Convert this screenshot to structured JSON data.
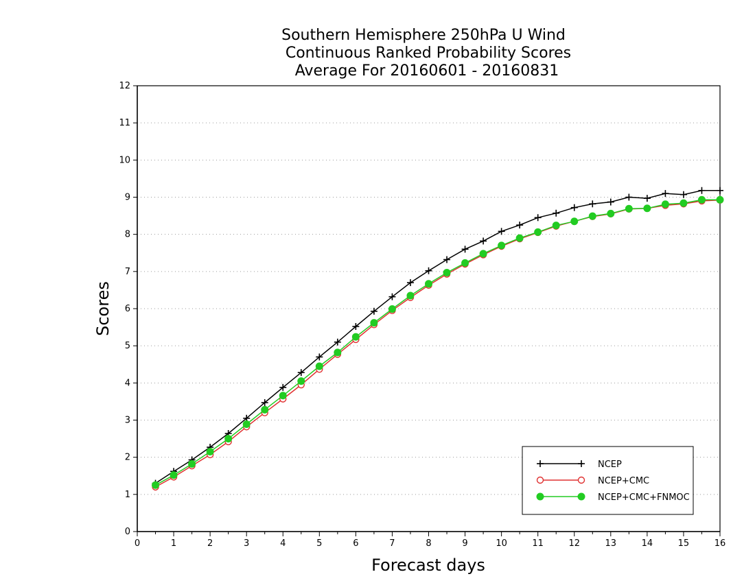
{
  "chart_data": {
    "type": "line",
    "title_lines": [
      "Southern Hemisphere 250hPa U Wind",
      "Continuous Ranked Probability Scores",
      "Average For 20160601 - 20160831"
    ],
    "xlabel": "Forecast days",
    "ylabel": "Scores",
    "xlim": [
      0,
      16
    ],
    "ylim": [
      0,
      12
    ],
    "xticks": [
      0,
      1,
      2,
      3,
      4,
      5,
      6,
      7,
      8,
      9,
      10,
      11,
      12,
      13,
      14,
      15,
      16
    ],
    "yticks": [
      0,
      1,
      2,
      3,
      4,
      5,
      6,
      7,
      8,
      9,
      10,
      11,
      12
    ],
    "grid": "horizontal-dotted",
    "legend_position": "bottom-right",
    "x": [
      0.5,
      1,
      1.5,
      2,
      2.5,
      3,
      3.5,
      4,
      4.5,
      5,
      5.5,
      6,
      6.5,
      7,
      7.5,
      8,
      8.5,
      9,
      9.5,
      10,
      10.5,
      11,
      11.5,
      12,
      12.5,
      13,
      13.5,
      14,
      14.5,
      15,
      15.5,
      16
    ],
    "series": [
      {
        "name": "NCEP",
        "color": "#000000",
        "marker": "plus",
        "values": [
          1.3,
          1.62,
          1.93,
          2.27,
          2.64,
          3.05,
          3.47,
          3.88,
          4.28,
          4.7,
          5.1,
          5.52,
          5.93,
          6.32,
          6.7,
          7.02,
          7.32,
          7.6,
          7.82,
          8.08,
          8.25,
          8.45,
          8.57,
          8.72,
          8.82,
          8.87,
          9.0,
          8.97,
          9.1,
          9.07,
          9.18,
          9.18
        ]
      },
      {
        "name": "NCEP+CMC",
        "color": "#e03030",
        "marker": "open-circle",
        "values": [
          1.2,
          1.47,
          1.77,
          2.07,
          2.42,
          2.82,
          3.2,
          3.57,
          3.95,
          4.37,
          4.77,
          5.17,
          5.57,
          5.95,
          6.3,
          6.63,
          6.93,
          7.2,
          7.45,
          7.68,
          7.88,
          8.05,
          8.22,
          8.35,
          8.48,
          8.55,
          8.68,
          8.7,
          8.78,
          8.82,
          8.9,
          8.92
        ]
      },
      {
        "name": "NCEP+CMC+FNMOC",
        "color": "#22cc22",
        "marker": "filled-circle",
        "values": [
          1.25,
          1.52,
          1.82,
          2.15,
          2.5,
          2.89,
          3.28,
          3.66,
          4.05,
          4.45,
          4.82,
          5.24,
          5.62,
          5.99,
          6.35,
          6.67,
          6.97,
          7.23,
          7.48,
          7.7,
          7.9,
          8.06,
          8.24,
          8.35,
          8.49,
          8.56,
          8.69,
          8.7,
          8.81,
          8.84,
          8.93,
          8.93
        ]
      }
    ]
  }
}
